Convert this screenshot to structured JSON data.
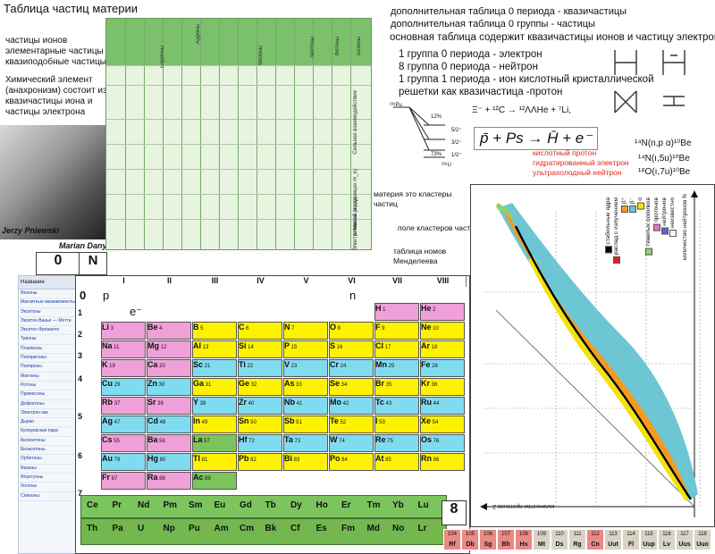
{
  "title": "Таблица частиц материи",
  "left_notes": {
    "line1": "частицы ионов",
    "line2": "элементарные частицы",
    "line3": "квазиподобные частицы",
    "chem": "Химический элемент (анахронизм) состоит из квазичастицы иона и частицы электрона"
  },
  "captions": {
    "person1": "Jerzy Pniewski",
    "person2": "Marian Danysz"
  },
  "grid_headers": {
    "col_groups": [
      "Адроны",
      "Барионы",
      "Мезоны",
      "Лептоны",
      "Фотоны",
      "Бозоны"
    ],
    "rows": [
      "Частицы",
      "Античастицы",
      "Спин",
      "Масса",
      "Заряд",
      "Время жизни"
    ],
    "row_labels_right": [
      "Сильное взаимодействие",
      "Масса (в единицах m_e)",
      "Электрический заряд",
      "Спин",
      "Время жизни (с)"
    ]
  },
  "right_top": {
    "line1": "дополнительная таблица 0 периода - квазичастицы",
    "line2": "дополнительная таблица 0 группы - частицы",
    "line3": "основная таблица содержит квазичастицы ионов и частицу электрона",
    "list": [
      "1 группа 0 периода - электрон",
      "8 группа 0 периода - нейтрон",
      "1 группа 1 периода - ион кислотный кристаллической",
      "решетки как квазичастица -протон"
    ]
  },
  "reaction": "Ξ⁻ + ¹²C → ¹²ΛΛHe + ⁷Li,",
  "formula": "p̄ + Ps → H̄ + e⁻",
  "red_notes": [
    "кислотный протон",
    "гидратированный электрон",
    "ультрахолодный нейтрон"
  ],
  "nuclear": [
    "¹⁴N(n,p α)¹⁰Be",
    "¹⁴N(ı,5u)¹⁰Be",
    "¹⁸O(ı,7u)¹⁰Be"
  ],
  "level_labels": [
    "²³⁸Pu",
    "12%",
    "5/2⁺",
    "3/2⁺",
    "1/2⁺",
    "73%",
    "²³⁸U"
  ],
  "middle_notes": {
    "clusters": "материя это кластеры частиц",
    "field": "поле кластеров частиц",
    "mendeleev": "таблица номов Менделеева"
  },
  "labels": {
    "zero": "0",
    "N": "N",
    "eight": "8",
    "zero_period_p": "p",
    "zero_period_zero": "0",
    "n_label": "n",
    "e_label": "e⁻"
  },
  "group_headers": [
    "I",
    "II",
    "III",
    "IV",
    "V",
    "VI",
    "VII",
    "VIII"
  ],
  "sidebar": {
    "header": "Название",
    "items": [
      "Фононы",
      "Магнитные квазимоменты",
      "Экситоны",
      "Экситон Ванье — Мотта",
      "Экситон Френкеля",
      "Трионы",
      "Плазмоны",
      "Поляритоны",
      "Поляроны",
      "Магноны",
      "Ротоны",
      "Примесоны",
      "Дефектоны",
      "Электрон как квазичастица",
      "Дырки",
      "Куперовская пара",
      "Биэкситоны",
      "Биэкситоны",
      "Орбитоны",
      "Фазоны",
      "Флуктуоны",
      "Холоны",
      "Спиноны"
    ]
  },
  "elements": [
    {
      "sym": "H",
      "num": "1",
      "g": 7,
      "p": 1,
      "color": "#f0a0d8"
    },
    {
      "sym": "He",
      "num": "2",
      "g": 8,
      "p": 1,
      "color": "#f0a0d8"
    },
    {
      "sym": "Li",
      "num": "3",
      "g": 1,
      "p": 2,
      "color": "#f0a0d8"
    },
    {
      "sym": "Be",
      "num": "4",
      "g": 2,
      "p": 2,
      "color": "#f0a0d8"
    },
    {
      "sym": "B",
      "num": "5",
      "g": 3,
      "p": 2,
      "color": "#fff200"
    },
    {
      "sym": "C",
      "num": "6",
      "g": 4,
      "p": 2,
      "color": "#fff200"
    },
    {
      "sym": "N",
      "num": "7",
      "g": 5,
      "p": 2,
      "color": "#fff200"
    },
    {
      "sym": "O",
      "num": "8",
      "g": 6,
      "p": 2,
      "color": "#fff200"
    },
    {
      "sym": "F",
      "num": "9",
      "g": 7,
      "p": 2,
      "color": "#fff200"
    },
    {
      "sym": "Ne",
      "num": "10",
      "g": 8,
      "p": 2,
      "color": "#fff200"
    },
    {
      "sym": "Na",
      "num": "11",
      "g": 1,
      "p": 3,
      "color": "#f0a0d8"
    },
    {
      "sym": "Mg",
      "num": "12",
      "g": 2,
      "p": 3,
      "color": "#f0a0d8"
    },
    {
      "sym": "Al",
      "num": "13",
      "g": 3,
      "p": 3,
      "color": "#fff200"
    },
    {
      "sym": "Si",
      "num": "14",
      "g": 4,
      "p": 3,
      "color": "#fff200"
    },
    {
      "sym": "P",
      "num": "15",
      "g": 5,
      "p": 3,
      "color": "#fff200"
    },
    {
      "sym": "S",
      "num": "16",
      "g": 6,
      "p": 3,
      "color": "#fff200"
    },
    {
      "sym": "Cl",
      "num": "17",
      "g": 7,
      "p": 3,
      "color": "#fff200"
    },
    {
      "sym": "Ar",
      "num": "18",
      "g": 8,
      "p": 3,
      "color": "#fff200"
    },
    {
      "sym": "K",
      "num": "19",
      "g": 1,
      "p": 4,
      "color": "#f0a0d8"
    },
    {
      "sym": "Ca",
      "num": "20",
      "g": 2,
      "p": 4,
      "color": "#f0a0d8"
    },
    {
      "sym": "Sc",
      "num": "21",
      "g": 3,
      "p": 4,
      "color": "#7fdcf0"
    },
    {
      "sym": "Ti",
      "num": "22",
      "g": 4,
      "p": 4,
      "color": "#7fdcf0"
    },
    {
      "sym": "V",
      "num": "23",
      "g": 5,
      "p": 4,
      "color": "#7fdcf0"
    },
    {
      "sym": "Cr",
      "num": "24",
      "g": 6,
      "p": 4,
      "color": "#7fdcf0"
    },
    {
      "sym": "Mn",
      "num": "25",
      "g": 7,
      "p": 4,
      "color": "#7fdcf0"
    },
    {
      "sym": "Fe",
      "num": "26",
      "g": 8,
      "p": 4,
      "color": "#7fdcf0"
    },
    {
      "sym": "Cu",
      "num": "29",
      "g": 1,
      "p": 5,
      "color": "#7fdcf0"
    },
    {
      "sym": "Zn",
      "num": "30",
      "g": 2,
      "p": 5,
      "color": "#7fdcf0"
    },
    {
      "sym": "Ga",
      "num": "31",
      "g": 3,
      "p": 5,
      "color": "#fff200"
    },
    {
      "sym": "Ge",
      "num": "32",
      "g": 4,
      "p": 5,
      "color": "#fff200"
    },
    {
      "sym": "As",
      "num": "33",
      "g": 5,
      "p": 5,
      "color": "#fff200"
    },
    {
      "sym": "Se",
      "num": "34",
      "g": 6,
      "p": 5,
      "color": "#fff200"
    },
    {
      "sym": "Br",
      "num": "35",
      "g": 7,
      "p": 5,
      "color": "#fff200"
    },
    {
      "sym": "Kr",
      "num": "36",
      "g": 8,
      "p": 5,
      "color": "#fff200"
    },
    {
      "sym": "Rb",
      "num": "37",
      "g": 1,
      "p": 6,
      "color": "#f0a0d8"
    },
    {
      "sym": "Sr",
      "num": "38",
      "g": 2,
      "p": 6,
      "color": "#f0a0d8"
    },
    {
      "sym": "Y",
      "num": "39",
      "g": 3,
      "p": 6,
      "color": "#7fdcf0"
    },
    {
      "sym": "Zr",
      "num": "40",
      "g": 4,
      "p": 6,
      "color": "#7fdcf0"
    },
    {
      "sym": "Nb",
      "num": "41",
      "g": 5,
      "p": 6,
      "color": "#7fdcf0"
    },
    {
      "sym": "Mo",
      "num": "42",
      "g": 6,
      "p": 6,
      "color": "#7fdcf0"
    },
    {
      "sym": "Tc",
      "num": "43",
      "g": 7,
      "p": 6,
      "color": "#7fdcf0"
    },
    {
      "sym": "Ru",
      "num": "44",
      "g": 8,
      "p": 6,
      "color": "#7fdcf0"
    },
    {
      "sym": "Ag",
      "num": "47",
      "g": 1,
      "p": 7,
      "color": "#7fdcf0"
    },
    {
      "sym": "Cd",
      "num": "48",
      "g": 2,
      "p": 7,
      "color": "#7fdcf0"
    },
    {
      "sym": "In",
      "num": "49",
      "g": 3,
      "p": 7,
      "color": "#fff200"
    },
    {
      "sym": "Sn",
      "num": "50",
      "g": 4,
      "p": 7,
      "color": "#fff200"
    },
    {
      "sym": "Sb",
      "num": "51",
      "g": 5,
      "p": 7,
      "color": "#fff200"
    },
    {
      "sym": "Te",
      "num": "52",
      "g": 6,
      "p": 7,
      "color": "#fff200"
    },
    {
      "sym": "I",
      "num": "53",
      "g": 7,
      "p": 7,
      "color": "#fff200"
    },
    {
      "sym": "Xe",
      "num": "54",
      "g": 8,
      "p": 7,
      "color": "#fff200"
    },
    {
      "sym": "Cs",
      "num": "55",
      "g": 1,
      "p": 8,
      "color": "#f0a0d8"
    },
    {
      "sym": "Ba",
      "num": "56",
      "g": 2,
      "p": 8,
      "color": "#f0a0d8"
    },
    {
      "sym": "La",
      "num": "57",
      "g": 3,
      "p": 8,
      "color": "#7cc55e"
    },
    {
      "sym": "Hf",
      "num": "72",
      "g": 4,
      "p": 8,
      "color": "#7fdcf0"
    },
    {
      "sym": "Ta",
      "num": "73",
      "g": 5,
      "p": 8,
      "color": "#7fdcf0"
    },
    {
      "sym": "W",
      "num": "74",
      "g": 6,
      "p": 8,
      "color": "#7fdcf0"
    },
    {
      "sym": "Re",
      "num": "75",
      "g": 7,
      "p": 8,
      "color": "#7fdcf0"
    },
    {
      "sym": "Os",
      "num": "76",
      "g": 8,
      "p": 8,
      "color": "#7fdcf0"
    },
    {
      "sym": "Au",
      "num": "79",
      "g": 1,
      "p": 9,
      "color": "#7fdcf0"
    },
    {
      "sym": "Hg",
      "num": "80",
      "g": 2,
      "p": 9,
      "color": "#7fdcf0"
    },
    {
      "sym": "Tl",
      "num": "81",
      "g": 3,
      "p": 9,
      "color": "#fff200"
    },
    {
      "sym": "Pb",
      "num": "82",
      "g": 4,
      "p": 9,
      "color": "#fff200"
    },
    {
      "sym": "Bi",
      "num": "83",
      "g": 5,
      "p": 9,
      "color": "#fff200"
    },
    {
      "sym": "Po",
      "num": "84",
      "g": 6,
      "p": 9,
      "color": "#fff200"
    },
    {
      "sym": "At",
      "num": "85",
      "g": 7,
      "p": 9,
      "color": "#fff200"
    },
    {
      "sym": "Rn",
      "num": "86",
      "g": 8,
      "p": 9,
      "color": "#fff200"
    },
    {
      "sym": "Fr",
      "num": "87",
      "g": 1,
      "p": 10,
      "color": "#f0a0d8"
    },
    {
      "sym": "Ra",
      "num": "88",
      "g": 2,
      "p": 10,
      "color": "#f0a0d8"
    },
    {
      "sym": "Ac",
      "num": "89",
      "g": 3,
      "p": 10,
      "color": "#7cc55e"
    }
  ],
  "lanthanides": [
    "Ce",
    "Pr",
    "Nd",
    "Pm",
    "Sm",
    "Eu",
    "Gd",
    "Tb",
    "Dy",
    "Ho",
    "Er",
    "Tm",
    "Yb",
    "Lu"
  ],
  "actinides": [
    "Th",
    "Pa",
    "U",
    "Np",
    "Pu",
    "Am",
    "Cm",
    "Bk",
    "Cf",
    "Es",
    "Fm",
    "Md",
    "No",
    "Lr"
  ],
  "bottom_row": [
    {
      "num": "104",
      "sym": "Rf",
      "color": "#e88a86"
    },
    {
      "num": "105",
      "sym": "Db",
      "color": "#e88a86"
    },
    {
      "num": "106",
      "sym": "Sg",
      "color": "#e88a86"
    },
    {
      "num": "107",
      "sym": "Bh",
      "color": "#e88a86"
    },
    {
      "num": "108",
      "sym": "Hs",
      "color": "#e88a86"
    },
    {
      "num": "109",
      "sym": "Mt",
      "color": "#d8d3c4"
    },
    {
      "num": "110",
      "sym": "Ds",
      "color": "#d8d3c4"
    },
    {
      "num": "111",
      "sym": "Rg",
      "color": "#d8d3c4"
    },
    {
      "num": "112",
      "sym": "Cn",
      "color": "#e88a86"
    },
    {
      "num": "113",
      "sym": "Uut",
      "color": "#d8d3c4"
    },
    {
      "num": "114",
      "sym": "Fl",
      "color": "#d8d3c4"
    },
    {
      "num": "115",
      "sym": "Uup",
      "color": "#d8d3c4"
    },
    {
      "num": "116",
      "sym": "Lv",
      "color": "#d8d3c4"
    },
    {
      "num": "117",
      "sym": "Uus",
      "color": "#d8d3c4"
    },
    {
      "num": "118",
      "sym": "Uuo",
      "color": "#d8d3c4"
    }
  ],
  "nuclide_chart": {
    "x_axis": "количество протонов Z",
    "y_axis": "количество нейтронов N",
    "legend": [
      {
        "label": "стабильные ядра",
        "color": "#000000"
      },
      {
        "label": "распад с излучением",
        "color": "#e02020"
      },
      {
        "label": "β⁺",
        "color": "#f59a1e"
      },
      {
        "label": "β⁻",
        "color": "#6cc6d4"
      },
      {
        "label": "α",
        "color": "#f4e20f"
      },
      {
        "label": "тяжелых осколков",
        "color": "#8fd26a"
      },
      {
        "label": "протонов",
        "color": "#e56fd0"
      },
      {
        "label": "нейтронов",
        "color": "#5b62d6"
      },
      {
        "label": "неизвестно",
        "color": "#ffffff"
      }
    ]
  }
}
